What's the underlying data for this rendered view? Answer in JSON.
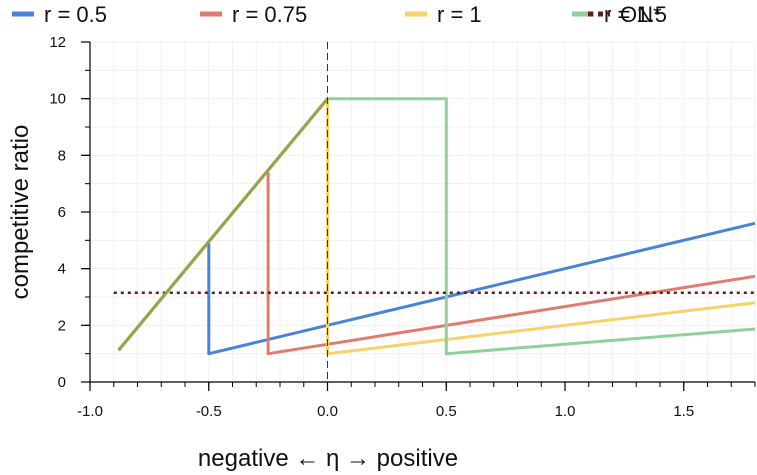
{
  "chart_data": {
    "type": "line",
    "title": "",
    "xlabel": "negative ← η  → positive",
    "ylabel": "competitive ratio",
    "xlim": [
      -1.0,
      1.8
    ],
    "ylim": [
      0,
      12
    ],
    "xticks": [
      -1.0,
      -0.5,
      0.0,
      0.5,
      1.0,
      1.5
    ],
    "xtick_labels": [
      "-1.0",
      "-0.5",
      "0.0",
      "0.5",
      "1.0",
      "1.5"
    ],
    "yticks": [
      0,
      2,
      4,
      6,
      8,
      10,
      12
    ],
    "ytick_labels": [
      "0",
      "2",
      "4",
      "6",
      "8",
      "10",
      "12"
    ],
    "grid": true,
    "legend_position": "top",
    "vline_x": 0,
    "series": [
      {
        "name": "r = 0.5",
        "color": "#4a82d8",
        "style": "solid",
        "x": [
          -0.5,
          -0.5,
          0.0,
          1.8
        ],
        "y": [
          4.9,
          1.0,
          2.0,
          5.6
        ]
      },
      {
        "name": "r = 0.75",
        "color": "#e07b70",
        "style": "solid",
        "x": [
          -0.25,
          -0.25,
          0.0,
          1.8
        ],
        "y": [
          7.4,
          1.0,
          1.33,
          3.73
        ]
      },
      {
        "name": "r = 1",
        "color": "#f5d36a",
        "style": "solid",
        "x": [
          0.0,
          0.0,
          1.8
        ],
        "y": [
          10.0,
          1.0,
          2.8
        ]
      },
      {
        "name": "r = 1.5",
        "color": "#8fd19a",
        "style": "solid",
        "x": [
          -0.88,
          0.0,
          0.5,
          0.5,
          1.8
        ],
        "y": [
          1.12,
          10.0,
          10.0,
          1.0,
          1.87
        ]
      },
      {
        "name": "ON*",
        "color": "#6b1a1a",
        "style": "dotted",
        "x": [
          -0.9,
          1.8
        ],
        "y": [
          3.15,
          3.15
        ]
      }
    ],
    "overlay": {
      "name": "shared segment",
      "color": "#9aa24a",
      "x": [
        -0.88,
        0.0
      ],
      "y": [
        1.12,
        10.0
      ]
    }
  }
}
